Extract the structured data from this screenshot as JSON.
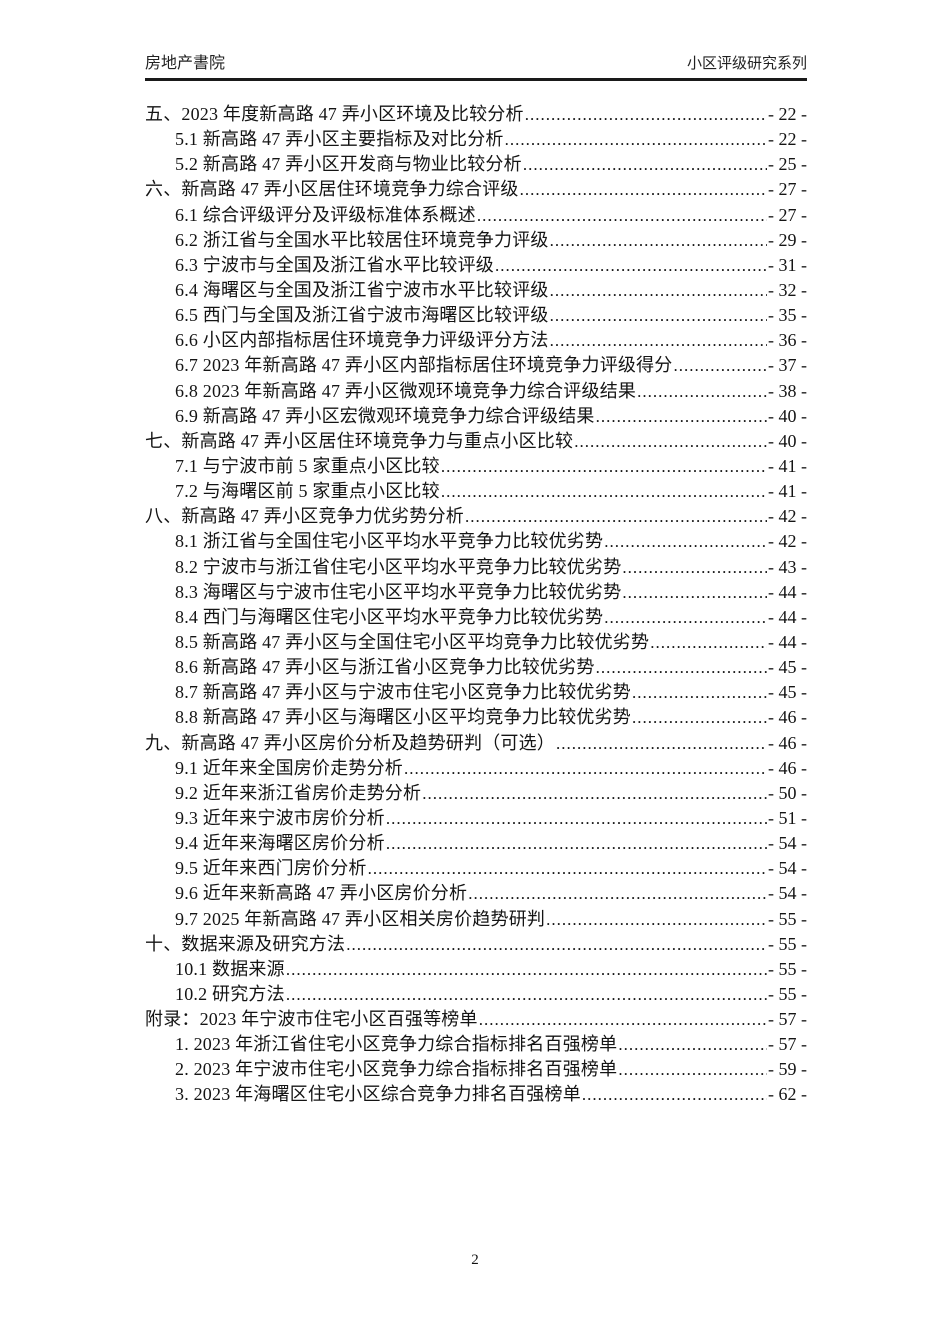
{
  "header": {
    "left": "房地产書院",
    "right": "小区评级研究系列"
  },
  "toc": {
    "entries": [
      {
        "level": 1,
        "text": "五、2023 年度新高路 47 弄小区环境及比较分析",
        "page_label": "- 22 -"
      },
      {
        "level": 2,
        "text": "5.1 新高路 47 弄小区主要指标及对比分析",
        "page_label": "- 22 -"
      },
      {
        "level": 2,
        "text": "5.2 新高路 47 弄小区开发商与物业比较分析",
        "page_label": "- 25 -"
      },
      {
        "level": 1,
        "text": "六、新高路 47 弄小区居住环境竞争力综合评级",
        "page_label": "- 27 -"
      },
      {
        "level": 2,
        "text": "6.1 综合评级评分及评级标准体系概述",
        "page_label": "- 27 -"
      },
      {
        "level": 2,
        "text": "6.2 浙江省与全国水平比较居住环境竞争力评级",
        "page_label": "- 29 -"
      },
      {
        "level": 2,
        "text": "6.3 宁波市与全国及浙江省水平比较评级",
        "page_label": "- 31 -"
      },
      {
        "level": 2,
        "text": "6.4 海曙区与全国及浙江省宁波市水平比较评级",
        "page_label": "- 32 -"
      },
      {
        "level": 2,
        "text": "6.5 西门与全国及浙江省宁波市海曙区比较评级",
        "page_label": "- 35 -"
      },
      {
        "level": 2,
        "text": "6.6 小区内部指标居住环境竞争力评级评分方法",
        "page_label": "- 36 -"
      },
      {
        "level": 2,
        "text": "6.7 2023 年新高路 47 弄小区内部指标居住环境竞争力评级得分",
        "page_label": "- 37 -"
      },
      {
        "level": 2,
        "text": "6.8 2023 年新高路 47 弄小区微观环境竞争力综合评级结果",
        "page_label": "- 38 -"
      },
      {
        "level": 2,
        "text": "6.9 新高路 47 弄小区宏微观环境竞争力综合评级结果",
        "page_label": "- 40 -"
      },
      {
        "level": 1,
        "text": "七、新高路 47 弄小区居住环境竞争力与重点小区比较",
        "page_label": "- 40 -"
      },
      {
        "level": 2,
        "text": "7.1 与宁波市前 5 家重点小区比较",
        "page_label": "- 41 -"
      },
      {
        "level": 2,
        "text": "7.2 与海曙区前 5 家重点小区比较",
        "page_label": "- 41 -"
      },
      {
        "level": 1,
        "text": "八、新高路 47 弄小区竞争力优劣势分析",
        "page_label": "- 42 -"
      },
      {
        "level": 2,
        "text": "8.1 浙江省与全国住宅小区平均水平竞争力比较优劣势",
        "page_label": "- 42 -"
      },
      {
        "level": 2,
        "text": "8.2 宁波市与浙江省住宅小区平均水平竞争力比较优劣势",
        "page_label": "- 43 -"
      },
      {
        "level": 2,
        "text": "8.3 海曙区与宁波市住宅小区平均水平竞争力比较优劣势",
        "page_label": "- 44 -"
      },
      {
        "level": 2,
        "text": "8.4 西门与海曙区住宅小区平均水平竞争力比较优劣势",
        "page_label": "- 44 -"
      },
      {
        "level": 2,
        "text": "8.5 新高路 47 弄小区与全国住宅小区平均竞争力比较优劣势",
        "page_label": "- 44 -"
      },
      {
        "level": 2,
        "text": "8.6 新高路 47 弄小区与浙江省小区竞争力比较优劣势",
        "page_label": "- 45 -"
      },
      {
        "level": 2,
        "text": "8.7 新高路 47 弄小区与宁波市住宅小区竞争力比较优劣势",
        "page_label": "- 45 -"
      },
      {
        "level": 2,
        "text": "8.8 新高路 47 弄小区与海曙区小区平均竞争力比较优劣势",
        "page_label": "- 46 -"
      },
      {
        "level": 1,
        "text": "九、新高路 47 弄小区房价分析及趋势研判（可选）",
        "page_label": "- 46 -"
      },
      {
        "level": 2,
        "text": "9.1 近年来全国房价走势分析",
        "page_label": "- 46 -"
      },
      {
        "level": 2,
        "text": "9.2 近年来浙江省房价走势分析",
        "page_label": "- 50 -"
      },
      {
        "level": 2,
        "text": "9.3 近年来宁波市房价分析",
        "page_label": "- 51 -"
      },
      {
        "level": 2,
        "text": "9.4 近年来海曙区房价分析",
        "page_label": "- 54 -"
      },
      {
        "level": 2,
        "text": "9.5 近年来西门房价分析",
        "page_label": "- 54 -"
      },
      {
        "level": 2,
        "text": "9.6 近年来新高路 47 弄小区房价分析",
        "page_label": "- 54 -"
      },
      {
        "level": 2,
        "text": "9.7 2025 年新高路 47 弄小区相关房价趋势研判",
        "page_label": "- 55 -"
      },
      {
        "level": 1,
        "text": "十、数据来源及研究方法",
        "page_label": "- 55 -"
      },
      {
        "level": 2,
        "text": "10.1 数据来源",
        "page_label": "- 55 -"
      },
      {
        "level": 2,
        "text": "10.2 研究方法",
        "page_label": "- 55 -"
      },
      {
        "level": 1,
        "text": "附录：2023 年宁波市住宅小区百强等榜单",
        "page_label": "- 57 -"
      },
      {
        "level": 2,
        "text": "1.  2023 年浙江省住宅小区竞争力综合指标排名百强榜单",
        "page_label": "- 57 -"
      },
      {
        "level": 2,
        "text": "2.  2023 年宁波市住宅小区竞争力综合指标排名百强榜单",
        "page_label": "- 59 -"
      },
      {
        "level": 2,
        "text": "3.  2023 年海曙区住宅小区综合竞争力排名百强榜单",
        "page_label": "- 62 -"
      }
    ]
  },
  "footer": {
    "page_number": "2"
  }
}
